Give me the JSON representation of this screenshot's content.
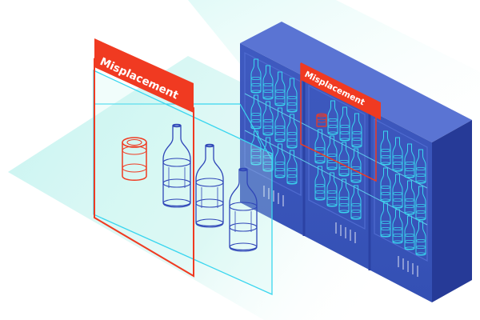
{
  "labels": {
    "front_tag": "Misplacement",
    "shelf_tag": "Misplacement"
  },
  "colors": {
    "highlight": "#f03a21",
    "wireframe": "#2f46b8",
    "neon": "#3ad6ef",
    "fridge_front": "#3a55ba",
    "fridge_side": "#263a97",
    "fridge_top": "#5a74d3",
    "floor": "#bff2ef"
  },
  "icons": {
    "misplaced_item": "can-wireframe-icon",
    "product": "bottle-wireframe-icon"
  }
}
